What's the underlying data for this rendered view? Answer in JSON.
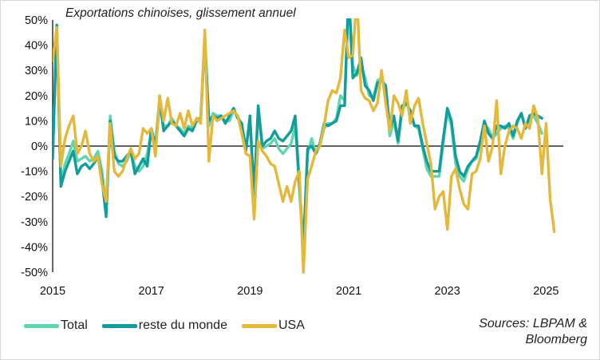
{
  "chart_data": {
    "type": "line",
    "title": "Exportations chinoises, glissement annuel",
    "source": "Sources: LBPAM & Bloomberg",
    "source_lines": [
      "Sources: LBPAM &",
      "Bloomberg"
    ],
    "xlabel": "",
    "ylabel": "",
    "x_start": 2015.0,
    "x_step": 0.0833333,
    "xlim": [
      2015.0,
      2025.35
    ],
    "ylim": [
      -50,
      50
    ],
    "y_ticks": [
      -50,
      -40,
      -30,
      -20,
      -10,
      0,
      10,
      20,
      30,
      40,
      50
    ],
    "y_tick_labels": [
      "-50%",
      "-40%",
      "-30%",
      "-20%",
      "-10%",
      "0%",
      "10%",
      "20%",
      "30%",
      "40%",
      "50%"
    ],
    "x_ticks": [
      2015,
      2017,
      2019,
      2021,
      2023,
      2025
    ],
    "x_tick_labels": [
      "2015",
      "2017",
      "2019",
      "2021",
      "2023",
      "2025"
    ],
    "grid": false,
    "legend_position": "bottom-left",
    "series": [
      {
        "name": "Total",
        "color": "#5fd6b0",
        "values": [
          -3,
          47,
          -15,
          -7,
          -3,
          2,
          -6,
          -5,
          -4,
          -6,
          -5,
          -2,
          -10,
          -25,
          12,
          -2,
          -7,
          -8,
          -6,
          -2,
          -8,
          -10,
          -8,
          -3,
          6,
          -1,
          16,
          8,
          8,
          11,
          8,
          7,
          5,
          8,
          7,
          11,
          11,
          44,
          8,
          13,
          12,
          12,
          10,
          10,
          14,
          12,
          8,
          0,
          9,
          -21,
          14,
          -1,
          0,
          1,
          3,
          -1,
          -3,
          -1,
          1,
          8,
          -17,
          -43,
          -3,
          3,
          -3,
          0,
          7,
          9,
          9,
          11,
          20,
          18,
          60,
          32,
          28,
          32,
          27,
          20,
          19,
          26,
          27,
          22,
          4,
          10,
          1,
          14,
          17,
          14,
          8,
          7,
          -1,
          -9,
          -12,
          -12,
          -12,
          1,
          14,
          8,
          -7,
          -12,
          -14,
          -9,
          -6,
          -5,
          1,
          8,
          7,
          3,
          5,
          7,
          8,
          7,
          3,
          9,
          13,
          7,
          11,
          12,
          9,
          5
        ]
      },
      {
        "name": "reste du monde",
        "color": "#139c9c",
        "values": [
          -5,
          48,
          -16,
          -10,
          -6,
          -2,
          -11,
          -8,
          -7,
          -9,
          -7,
          -4,
          -13,
          -28,
          10,
          -4,
          -6,
          -6,
          -4,
          -2,
          -11,
          -8,
          -5,
          -8,
          7,
          0,
          19,
          6,
          8,
          10,
          8,
          6,
          4,
          7,
          6,
          10,
          10,
          43,
          10,
          12,
          11,
          12,
          9,
          12,
          15,
          11,
          9,
          -2,
          12,
          -19,
          16,
          0,
          2,
          3,
          6,
          3,
          2,
          4,
          6,
          12,
          -15,
          -40,
          -1,
          0,
          -3,
          1,
          9,
          8,
          9,
          10,
          16,
          16,
          62,
          27,
          29,
          35,
          24,
          22,
          18,
          25,
          26,
          24,
          7,
          12,
          2,
          16,
          17,
          14,
          8,
          8,
          0,
          -6,
          -10,
          -10,
          -10,
          3,
          15,
          10,
          -4,
          -10,
          -12,
          -8,
          -6,
          -4,
          2,
          10,
          5,
          3,
          8,
          8,
          7,
          9,
          4,
          10,
          13,
          7,
          12,
          13,
          12,
          11
        ]
      },
      {
        "name": "USA",
        "color": "#e4b83a",
        "values": [
          34,
          47,
          -8,
          3,
          8,
          12,
          -3,
          0,
          6,
          -3,
          -6,
          -4,
          -15,
          -22,
          9,
          -10,
          -12,
          -10,
          -5,
          -1,
          -5,
          -3,
          7,
          5,
          7,
          -4,
          20,
          10,
          19,
          9,
          8,
          13,
          7,
          14,
          8,
          11,
          9,
          46,
          -6,
          12,
          10,
          11,
          12,
          13,
          14,
          12,
          5,
          -3,
          -4,
          -29,
          2,
          -2,
          -4,
          -7,
          -8,
          -15,
          -22,
          -16,
          -22,
          -14,
          -10,
          -50,
          -13,
          -8,
          -2,
          0,
          8,
          18,
          22,
          21,
          27,
          46,
          35,
          36,
          60,
          22,
          19,
          18,
          14,
          17,
          30,
          17,
          6,
          20,
          17,
          12,
          22,
          9,
          16,
          19,
          9,
          1,
          -7,
          -25,
          -20,
          -18,
          -33,
          -12,
          -9,
          -17,
          -23,
          -25,
          -11,
          -10,
          -5,
          8,
          -6,
          0,
          18,
          -11,
          0,
          6,
          8,
          7,
          3,
          9,
          7,
          16,
          11,
          -11,
          9,
          -21,
          -34
        ]
      }
    ]
  }
}
